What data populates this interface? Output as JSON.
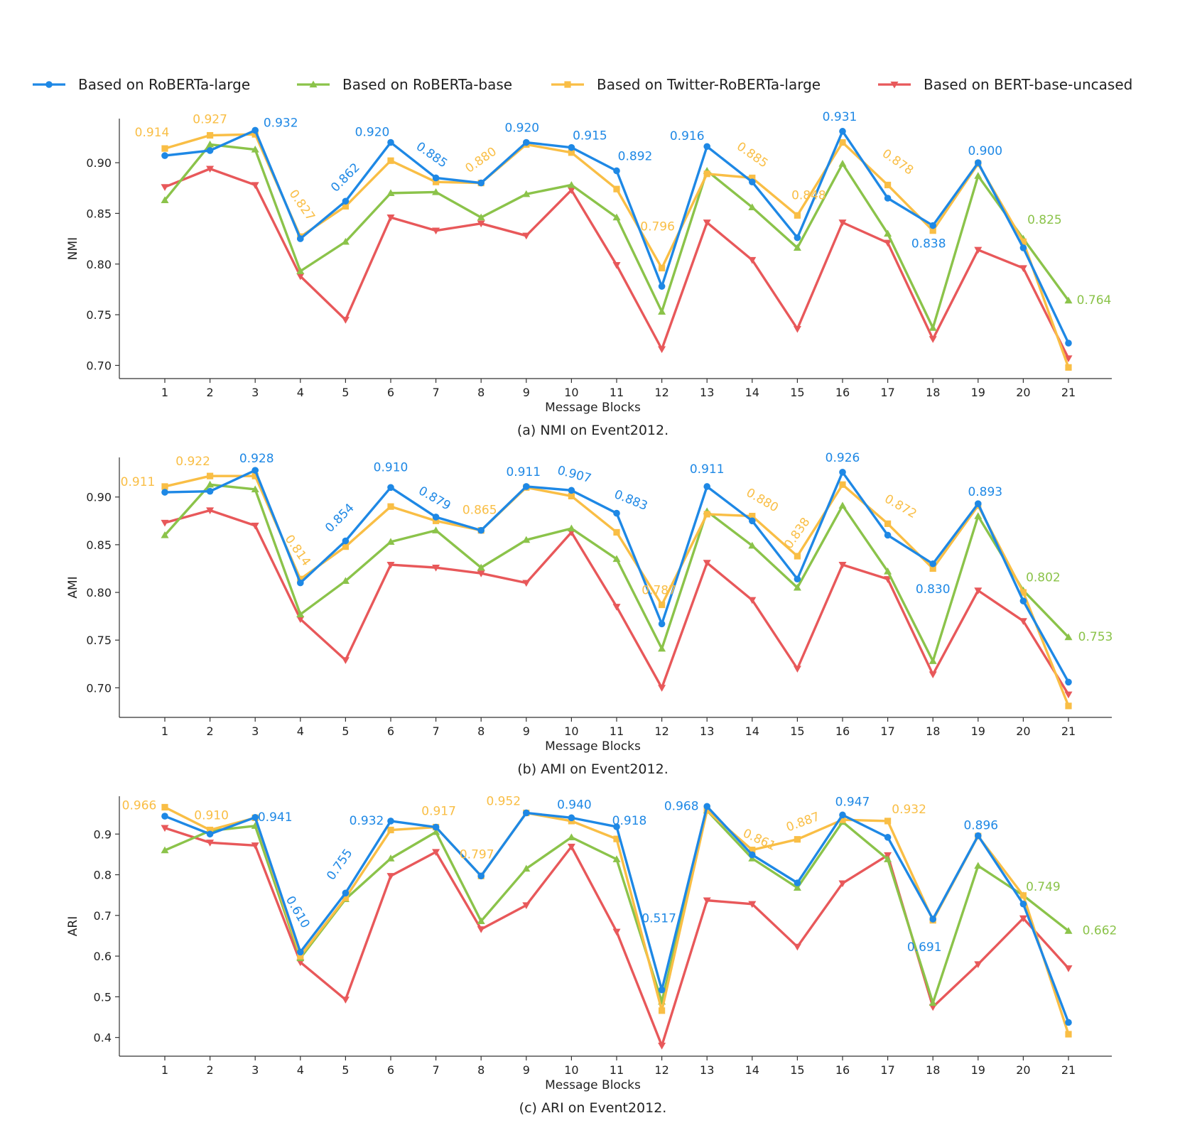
{
  "legend": [
    {
      "name": "Based on RoBERTa-large",
      "color": "#1E88E5",
      "marker": "circle"
    },
    {
      "name": "Based on RoBERTa-base",
      "color": "#8BC34A",
      "marker": "triangle-up"
    },
    {
      "name": "Based on Twitter-RoBERTa-large",
      "color": "#F9BE45",
      "marker": "square"
    },
    {
      "name": "Based on BERT-base-uncased",
      "color": "#E8585A",
      "marker": "triangle-down"
    }
  ],
  "chart_data": [
    {
      "type": "line",
      "caption": "(a) NMI on Event2012.",
      "xlabel": "Message Blocks",
      "ylabel": "NMI",
      "x": [
        1,
        2,
        3,
        4,
        5,
        6,
        7,
        8,
        9,
        10,
        11,
        12,
        13,
        14,
        15,
        16,
        17,
        18,
        19,
        20,
        21
      ],
      "ylim": [
        0.687,
        0.9435
      ],
      "yticks": [
        "0.70",
        "0.75",
        "0.80",
        "0.85",
        "0.90"
      ],
      "series": [
        {
          "name": "Based on RoBERTa-large",
          "values": [
            0.907,
            0.912,
            0.932,
            0.825,
            0.862,
            0.92,
            0.885,
            0.88,
            0.92,
            0.915,
            0.892,
            0.778,
            0.916,
            0.881,
            0.826,
            0.931,
            0.865,
            0.838,
            0.9,
            0.816,
            0.722
          ]
        },
        {
          "name": "Based on RoBERTa-base",
          "values": [
            0.863,
            0.918,
            0.913,
            0.793,
            0.822,
            0.87,
            0.871,
            0.846,
            0.869,
            0.878,
            0.846,
            0.753,
            0.892,
            0.856,
            0.816,
            0.899,
            0.83,
            0.737,
            0.887,
            0.825,
            0.764
          ]
        },
        {
          "name": "Based on Twitter-RoBERTa-large",
          "values": [
            0.914,
            0.927,
            0.928,
            0.827,
            0.857,
            0.902,
            0.881,
            0.88,
            0.918,
            0.91,
            0.874,
            0.796,
            0.889,
            0.885,
            0.848,
            0.92,
            0.878,
            0.833,
            0.899,
            0.822,
            0.698
          ]
        },
        {
          "name": "Based on BERT-base-uncased",
          "values": [
            0.876,
            0.894,
            0.878,
            0.788,
            0.745,
            0.846,
            0.833,
            0.84,
            0.828,
            0.873,
            0.799,
            0.716,
            0.841,
            0.804,
            0.736,
            0.841,
            0.821,
            0.726,
            0.814,
            0.796,
            0.707
          ]
        }
      ],
      "labels": [
        {
          "series": 2,
          "i": 0,
          "text": "0.914",
          "dx": -18,
          "dy": -22,
          "rot": 0
        },
        {
          "series": 2,
          "i": 1,
          "text": "0.927",
          "dx": 0,
          "dy": -22,
          "rot": 0
        },
        {
          "series": 0,
          "i": 2,
          "text": "0.932",
          "dx": 36,
          "dy": -10,
          "rot": 0
        },
        {
          "series": 2,
          "i": 3,
          "text": "0.827",
          "dx": 2,
          "dy": -44,
          "rot": 55
        },
        {
          "series": 0,
          "i": 4,
          "text": "0.862",
          "dx": 0,
          "dy": -33,
          "rot": -45
        },
        {
          "series": 0,
          "i": 5,
          "text": "0.920",
          "dx": -26,
          "dy": -14,
          "rot": 0
        },
        {
          "series": 0,
          "i": 6,
          "text": "0.885",
          "dx": -6,
          "dy": -32,
          "rot": 35
        },
        {
          "series": 2,
          "i": 7,
          "text": "0.880",
          "dx": 0,
          "dy": -32,
          "rot": -35
        },
        {
          "series": 0,
          "i": 8,
          "text": "0.920",
          "dx": -6,
          "dy": -20,
          "rot": 0
        },
        {
          "series": 0,
          "i": 9,
          "text": "0.915",
          "dx": 26,
          "dy": -16,
          "rot": 0
        },
        {
          "series": 0,
          "i": 10,
          "text": "0.892",
          "dx": 26,
          "dy": -20,
          "rot": 0
        },
        {
          "series": 2,
          "i": 11,
          "text": "0.796",
          "dx": -6,
          "dy": -58,
          "rot": 0
        },
        {
          "series": 0,
          "i": 12,
          "text": "0.916",
          "dx": -28,
          "dy": -14,
          "rot": 0
        },
        {
          "series": 2,
          "i": 13,
          "text": "0.885",
          "dx": 0,
          "dy": -32,
          "rot": 35
        },
        {
          "series": 2,
          "i": 14,
          "text": "0.848",
          "dx": 16,
          "dy": -28,
          "rot": 0
        },
        {
          "series": 0,
          "i": 15,
          "text": "0.931",
          "dx": -4,
          "dy": -20,
          "rot": 0
        },
        {
          "series": 2,
          "i": 16,
          "text": "0.878",
          "dx": 14,
          "dy": -32,
          "rot": 35
        },
        {
          "series": 0,
          "i": 17,
          "text": "0.838",
          "dx": -6,
          "dy": 26,
          "rot": 0
        },
        {
          "series": 0,
          "i": 18,
          "text": "0.900",
          "dx": 10,
          "dy": -16,
          "rot": 0
        },
        {
          "series": 1,
          "i": 19,
          "text": "0.825",
          "dx": 30,
          "dy": -26,
          "rot": 0
        },
        {
          "series": 1,
          "i": 20,
          "text": "0.764",
          "dx": 36,
          "dy": 0,
          "rot": 0
        }
      ]
    },
    {
      "type": "line",
      "caption": "(b) AMI on Event2012.",
      "xlabel": "Message Blocks",
      "ylabel": "AMI",
      "x": [
        1,
        2,
        3,
        4,
        5,
        6,
        7,
        8,
        9,
        10,
        11,
        12,
        13,
        14,
        15,
        16,
        17,
        18,
        19,
        20,
        21
      ],
      "ylim": [
        0.669,
        0.9415
      ],
      "yticks": [
        "0.70",
        "0.75",
        "0.80",
        "0.85",
        "0.90"
      ],
      "series": [
        {
          "name": "Based on RoBERTa-large",
          "values": [
            0.905,
            0.906,
            0.928,
            0.81,
            0.854,
            0.91,
            0.879,
            0.865,
            0.911,
            0.907,
            0.883,
            0.767,
            0.911,
            0.875,
            0.814,
            0.926,
            0.86,
            0.83,
            0.893,
            0.791,
            0.706
          ]
        },
        {
          "name": "Based on RoBERTa-base",
          "values": [
            0.86,
            0.913,
            0.908,
            0.777,
            0.812,
            0.853,
            0.865,
            0.826,
            0.855,
            0.867,
            0.835,
            0.741,
            0.885,
            0.849,
            0.805,
            0.891,
            0.822,
            0.728,
            0.88,
            0.802,
            0.753
          ]
        },
        {
          "name": "Based on Twitter-RoBERTa-large",
          "values": [
            0.911,
            0.922,
            0.922,
            0.814,
            0.848,
            0.89,
            0.875,
            0.865,
            0.91,
            0.901,
            0.863,
            0.787,
            0.882,
            0.88,
            0.838,
            0.913,
            0.872,
            0.825,
            0.891,
            0.8,
            0.681
          ]
        },
        {
          "name": "Based on BERT-base-uncased",
          "values": [
            0.873,
            0.886,
            0.87,
            0.772,
            0.729,
            0.829,
            0.826,
            0.82,
            0.81,
            0.863,
            0.785,
            0.7,
            0.831,
            0.792,
            0.72,
            0.829,
            0.814,
            0.714,
            0.802,
            0.77,
            0.693
          ]
        }
      ],
      "labels": [
        {
          "series": 2,
          "i": 0,
          "text": "0.911",
          "dx": -38,
          "dy": -6,
          "rot": 0
        },
        {
          "series": 2,
          "i": 1,
          "text": "0.922",
          "dx": -24,
          "dy": -20,
          "rot": 0
        },
        {
          "series": 0,
          "i": 2,
          "text": "0.928",
          "dx": 2,
          "dy": -16,
          "rot": 0
        },
        {
          "series": 2,
          "i": 3,
          "text": "0.814",
          "dx": -4,
          "dy": -40,
          "rot": 55
        },
        {
          "series": 0,
          "i": 4,
          "text": "0.854",
          "dx": -8,
          "dy": -32,
          "rot": -45
        },
        {
          "series": 0,
          "i": 5,
          "text": "0.910",
          "dx": 0,
          "dy": -28,
          "rot": 0
        },
        {
          "series": 0,
          "i": 6,
          "text": "0.879",
          "dx": -2,
          "dy": -26,
          "rot": 30
        },
        {
          "series": 2,
          "i": 7,
          "text": "0.865",
          "dx": -2,
          "dy": -28,
          "rot": 0
        },
        {
          "series": 0,
          "i": 8,
          "text": "0.911",
          "dx": -4,
          "dy": -20,
          "rot": 0
        },
        {
          "series": 0,
          "i": 9,
          "text": "0.907",
          "dx": 4,
          "dy": -22,
          "rot": 15
        },
        {
          "series": 0,
          "i": 10,
          "text": "0.883",
          "dx": 20,
          "dy": -18,
          "rot": 22
        },
        {
          "series": 2,
          "i": 11,
          "text": "0.787",
          "dx": -4,
          "dy": -20,
          "rot": 0
        },
        {
          "series": 0,
          "i": 12,
          "text": "0.911",
          "dx": 0,
          "dy": -24,
          "rot": 0
        },
        {
          "series": 2,
          "i": 13,
          "text": "0.880",
          "dx": 14,
          "dy": -22,
          "rot": 30
        },
        {
          "series": 2,
          "i": 14,
          "text": "0.838",
          "dx": 0,
          "dy": -32,
          "rot": -55
        },
        {
          "series": 0,
          "i": 15,
          "text": "0.926",
          "dx": 0,
          "dy": -20,
          "rot": 0
        },
        {
          "series": 2,
          "i": 16,
          "text": "0.872",
          "dx": 18,
          "dy": -24,
          "rot": 30
        },
        {
          "series": 0,
          "i": 17,
          "text": "0.830",
          "dx": 0,
          "dy": 36,
          "rot": 0
        },
        {
          "series": 0,
          "i": 18,
          "text": "0.893",
          "dx": 10,
          "dy": -16,
          "rot": 0
        },
        {
          "series": 1,
          "i": 19,
          "text": "0.802",
          "dx": 28,
          "dy": -18,
          "rot": 0
        },
        {
          "series": 1,
          "i": 20,
          "text": "0.753",
          "dx": 38,
          "dy": 0,
          "rot": 0
        }
      ]
    },
    {
      "type": "line",
      "caption": "(c) ARI on Event2012.",
      "xlabel": "Message Blocks",
      "ylabel": "ARI",
      "x": [
        1,
        2,
        3,
        4,
        5,
        6,
        7,
        8,
        9,
        10,
        11,
        12,
        13,
        14,
        15,
        16,
        17,
        18,
        19,
        20,
        21
      ],
      "ylim": [
        0.354,
        0.993
      ],
      "yticks": [
        "0.4",
        "0.5",
        "0.6",
        "0.7",
        "0.8",
        "0.9"
      ],
      "series": [
        {
          "name": "Based on RoBERTa-large",
          "values": [
            0.944,
            0.9,
            0.941,
            0.61,
            0.755,
            0.932,
            0.917,
            0.797,
            0.952,
            0.94,
            0.918,
            0.517,
            0.968,
            0.849,
            0.78,
            0.947,
            0.892,
            0.691,
            0.896,
            0.728,
            0.437
          ]
        },
        {
          "name": "Based on RoBERTa-base",
          "values": [
            0.86,
            0.908,
            0.92,
            0.595,
            0.74,
            0.84,
            0.905,
            0.686,
            0.815,
            0.892,
            0.838,
            0.488,
            0.958,
            0.84,
            0.768,
            0.93,
            0.838,
            0.485,
            0.822,
            0.749,
            0.662
          ]
        },
        {
          "name": "Based on Twitter-RoBERTa-large",
          "values": [
            0.966,
            0.91,
            0.94,
            0.6,
            0.743,
            0.91,
            0.917,
            0.797,
            0.952,
            0.932,
            0.888,
            0.466,
            0.958,
            0.861,
            0.887,
            0.935,
            0.932,
            0.688,
            0.895,
            0.749,
            0.408
          ]
        },
        {
          "name": "Based on BERT-base-uncased",
          "values": [
            0.915,
            0.879,
            0.872,
            0.585,
            0.493,
            0.797,
            0.856,
            0.666,
            0.725,
            0.869,
            0.66,
            0.38,
            0.737,
            0.728,
            0.623,
            0.779,
            0.848,
            0.475,
            0.58,
            0.693,
            0.57
          ]
        }
      ],
      "labels": [
        {
          "series": 2,
          "i": 0,
          "text": "0.966",
          "dx": -36,
          "dy": -2,
          "rot": 0
        },
        {
          "series": 2,
          "i": 1,
          "text": "0.910",
          "dx": 2,
          "dy": -20,
          "rot": 0
        },
        {
          "series": 0,
          "i": 2,
          "text": "0.941",
          "dx": 28,
          "dy": 0,
          "rot": 0
        },
        {
          "series": 0,
          "i": 3,
          "text": "0.610",
          "dx": -4,
          "dy": -56,
          "rot": 60
        },
        {
          "series": 0,
          "i": 4,
          "text": "0.755",
          "dx": -8,
          "dy": -40,
          "rot": -55
        },
        {
          "series": 0,
          "i": 5,
          "text": "0.932",
          "dx": -34,
          "dy": 0,
          "rot": 0
        },
        {
          "series": 2,
          "i": 6,
          "text": "0.917",
          "dx": 4,
          "dy": -22,
          "rot": 0
        },
        {
          "series": 2,
          "i": 7,
          "text": "0.797",
          "dx": -6,
          "dy": -30,
          "rot": 0
        },
        {
          "series": 2,
          "i": 8,
          "text": "0.952",
          "dx": -32,
          "dy": -16,
          "rot": 0
        },
        {
          "series": 0,
          "i": 9,
          "text": "0.940",
          "dx": 4,
          "dy": -18,
          "rot": 0
        },
        {
          "series": 0,
          "i": 10,
          "text": "0.918",
          "dx": 18,
          "dy": -8,
          "rot": 0
        },
        {
          "series": 0,
          "i": 11,
          "text": "0.517",
          "dx": -4,
          "dy": -100,
          "rot": 0
        },
        {
          "series": 0,
          "i": 12,
          "text": "0.968",
          "dx": -36,
          "dy": 0,
          "rot": 0
        },
        {
          "series": 2,
          "i": 13,
          "text": "0.861",
          "dx": 10,
          "dy": -14,
          "rot": 25
        },
        {
          "series": 2,
          "i": 14,
          "text": "0.887",
          "dx": 8,
          "dy": -24,
          "rot": -20
        },
        {
          "series": 0,
          "i": 15,
          "text": "0.947",
          "dx": 14,
          "dy": -18,
          "rot": 0
        },
        {
          "series": 2,
          "i": 16,
          "text": "0.932",
          "dx": 30,
          "dy": -16,
          "rot": 0
        },
        {
          "series": 0,
          "i": 17,
          "text": "0.691",
          "dx": -12,
          "dy": 40,
          "rot": 0
        },
        {
          "series": 0,
          "i": 18,
          "text": "0.896",
          "dx": 4,
          "dy": -14,
          "rot": 0
        },
        {
          "series": 1,
          "i": 19,
          "text": "0.749",
          "dx": 28,
          "dy": -12,
          "rot": 0
        },
        {
          "series": 1,
          "i": 20,
          "text": "0.662",
          "dx": 44,
          "dy": 0,
          "rot": 0
        }
      ]
    }
  ]
}
